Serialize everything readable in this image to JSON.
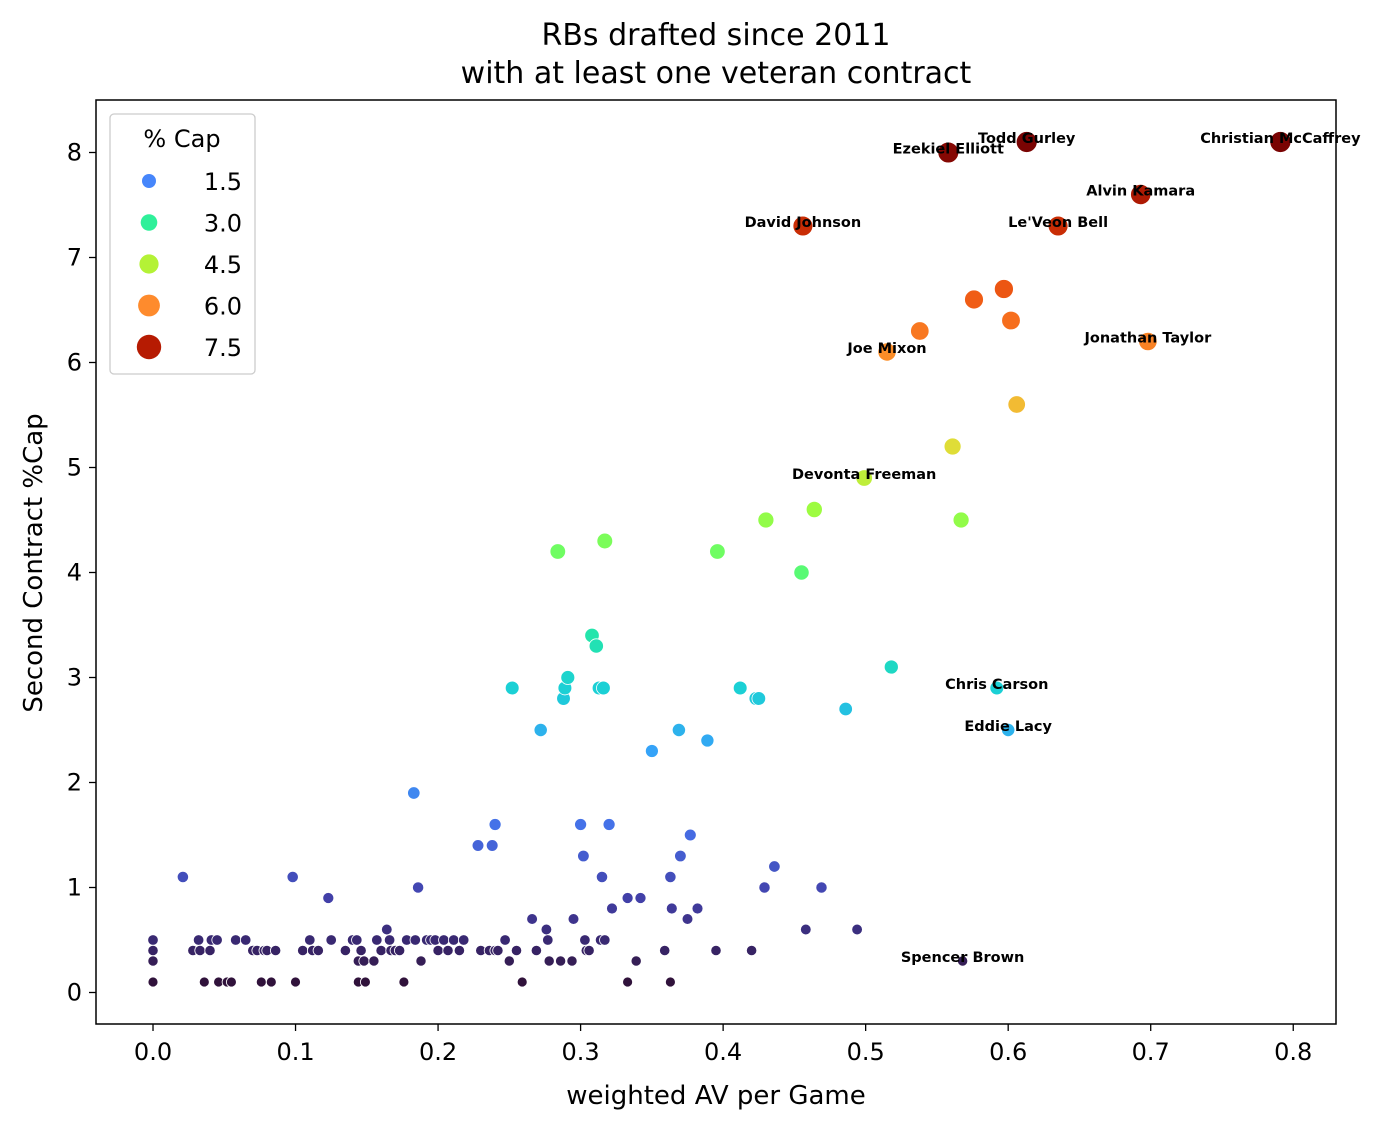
{
  "chart_data": {
    "type": "scatter",
    "title": [
      "RBs drafted since 2011",
      "with at least one veteran contract"
    ],
    "xlabel": "weighted AV per Game",
    "ylabel": "Second Contract %Cap",
    "xlim": [
      -0.04,
      0.83
    ],
    "ylim": [
      -0.3,
      8.5
    ],
    "xticks": [
      0.0,
      0.1,
      0.2,
      0.3,
      0.4,
      0.5,
      0.6,
      0.7,
      0.8
    ],
    "xtick_labels": [
      "0.0",
      "0.1",
      "0.2",
      "0.3",
      "0.4",
      "0.5",
      "0.6",
      "0.7",
      "0.8"
    ],
    "yticks": [
      0,
      1,
      2,
      3,
      4,
      5,
      6,
      7,
      8
    ],
    "ytick_labels": [
      "0",
      "1",
      "2",
      "3",
      "4",
      "5",
      "6",
      "7",
      "8"
    ],
    "grid": false,
    "hue": "% Cap",
    "size": "% Cap",
    "colormap": "turbo",
    "legend": {
      "title": "% Cap",
      "position": "top-left",
      "entries": [
        {
          "label": "1.5",
          "value": 1.5,
          "color": "#4686fb"
        },
        {
          "label": "3.0",
          "value": 3.0,
          "color": "#2ff09a"
        },
        {
          "label": "4.5",
          "value": 4.5,
          "color": "#b4f236"
        },
        {
          "label": "6.0",
          "value": 6.0,
          "color": "#fe8b2d"
        },
        {
          "label": "7.5",
          "value": 7.5,
          "color": "#b61b02"
        }
      ]
    },
    "points": [
      [
        0.0,
        0.5
      ],
      [
        0.0,
        0.4
      ],
      [
        0.0,
        0.3
      ],
      [
        0.0,
        0.1
      ],
      [
        0.021,
        1.1
      ],
      [
        0.028,
        0.4
      ],
      [
        0.032,
        0.5
      ],
      [
        0.033,
        0.4
      ],
      [
        0.036,
        0.1
      ],
      [
        0.04,
        0.4
      ],
      [
        0.041,
        0.5
      ],
      [
        0.045,
        0.5
      ],
      [
        0.046,
        0.1
      ],
      [
        0.052,
        0.1
      ],
      [
        0.055,
        0.1
      ],
      [
        0.058,
        0.5
      ],
      [
        0.065,
        0.5
      ],
      [
        0.07,
        0.4
      ],
      [
        0.073,
        0.4
      ],
      [
        0.076,
        0.1
      ],
      [
        0.078,
        0.4
      ],
      [
        0.08,
        0.4
      ],
      [
        0.083,
        0.1
      ],
      [
        0.086,
        0.4
      ],
      [
        0.098,
        1.1
      ],
      [
        0.1,
        0.1
      ],
      [
        0.105,
        0.4
      ],
      [
        0.11,
        0.5
      ],
      [
        0.112,
        0.4
      ],
      [
        0.116,
        0.4
      ],
      [
        0.123,
        0.9
      ],
      [
        0.125,
        0.5
      ],
      [
        0.135,
        0.4
      ],
      [
        0.14,
        0.5
      ],
      [
        0.143,
        0.5
      ],
      [
        0.144,
        0.3
      ],
      [
        0.144,
        0.1
      ],
      [
        0.146,
        0.4
      ],
      [
        0.148,
        0.3
      ],
      [
        0.149,
        0.1
      ],
      [
        0.155,
        0.3
      ],
      [
        0.157,
        0.5
      ],
      [
        0.16,
        0.4
      ],
      [
        0.164,
        0.6
      ],
      [
        0.166,
        0.5
      ],
      [
        0.167,
        0.4
      ],
      [
        0.17,
        0.4
      ],
      [
        0.173,
        0.4
      ],
      [
        0.176,
        0.1
      ],
      [
        0.178,
        0.5
      ],
      [
        0.183,
        1.9
      ],
      [
        0.184,
        0.5
      ],
      [
        0.186,
        1.0
      ],
      [
        0.188,
        0.3
      ],
      [
        0.192,
        0.5
      ],
      [
        0.195,
        0.5
      ],
      [
        0.198,
        0.5
      ],
      [
        0.2,
        0.4
      ],
      [
        0.204,
        0.5
      ],
      [
        0.207,
        0.4
      ],
      [
        0.211,
        0.5
      ],
      [
        0.215,
        0.4
      ],
      [
        0.218,
        0.5
      ],
      [
        0.228,
        1.4
      ],
      [
        0.23,
        0.4
      ],
      [
        0.236,
        0.4
      ],
      [
        0.238,
        1.4
      ],
      [
        0.24,
        1.6
      ],
      [
        0.24,
        0.4
      ],
      [
        0.242,
        0.4
      ],
      [
        0.247,
        0.5
      ],
      [
        0.25,
        0.3
      ],
      [
        0.255,
        0.4
      ],
      [
        0.259,
        0.1
      ],
      [
        0.252,
        2.9
      ],
      [
        0.266,
        0.7
      ],
      [
        0.269,
        0.4
      ],
      [
        0.272,
        2.5
      ],
      [
        0.276,
        0.6
      ],
      [
        0.277,
        0.5
      ],
      [
        0.278,
        0.3
      ],
      [
        0.284,
        4.2
      ],
      [
        0.286,
        0.3
      ],
      [
        0.288,
        2.8
      ],
      [
        0.289,
        2.9
      ],
      [
        0.291,
        3.0
      ],
      [
        0.294,
        0.3
      ],
      [
        0.295,
        0.7
      ],
      [
        0.3,
        1.6
      ],
      [
        0.302,
        1.3
      ],
      [
        0.303,
        0.5
      ],
      [
        0.304,
        0.4
      ],
      [
        0.306,
        0.4
      ],
      [
        0.308,
        3.4
      ],
      [
        0.311,
        3.3
      ],
      [
        0.313,
        2.9
      ],
      [
        0.314,
        0.5
      ],
      [
        0.316,
        2.9
      ],
      [
        0.317,
        0.5
      ],
      [
        0.315,
        1.1
      ],
      [
        0.317,
        4.3
      ],
      [
        0.32,
        1.6
      ],
      [
        0.322,
        0.8
      ],
      [
        0.333,
        0.9
      ],
      [
        0.333,
        0.1
      ],
      [
        0.339,
        0.3
      ],
      [
        0.342,
        0.9
      ],
      [
        0.35,
        2.3
      ],
      [
        0.359,
        0.4
      ],
      [
        0.363,
        1.1
      ],
      [
        0.364,
        0.8
      ],
      [
        0.363,
        0.1
      ],
      [
        0.369,
        2.5
      ],
      [
        0.37,
        1.3
      ],
      [
        0.375,
        0.7
      ],
      [
        0.377,
        1.5
      ],
      [
        0.382,
        0.8
      ],
      [
        0.389,
        2.4
      ],
      [
        0.395,
        0.4
      ],
      [
        0.396,
        4.2
      ],
      [
        0.412,
        2.9
      ],
      [
        0.42,
        0.4
      ],
      [
        0.423,
        2.8
      ],
      [
        0.425,
        2.8
      ],
      [
        0.429,
        1.0
      ],
      [
        0.43,
        4.5
      ],
      [
        0.436,
        1.2
      ],
      [
        0.455,
        4.0
      ],
      [
        0.456,
        7.3
      ],
      [
        0.458,
        0.6
      ],
      [
        0.464,
        4.6
      ],
      [
        0.469,
        1.0
      ],
      [
        0.486,
        2.7
      ],
      [
        0.494,
        0.6
      ],
      [
        0.499,
        4.9
      ],
      [
        0.515,
        6.1
      ],
      [
        0.518,
        3.1
      ],
      [
        0.538,
        6.3
      ],
      [
        0.558,
        8.0
      ],
      [
        0.561,
        5.2
      ],
      [
        0.567,
        4.5
      ],
      [
        0.568,
        0.3
      ],
      [
        0.576,
        6.6
      ],
      [
        0.592,
        2.9
      ],
      [
        0.597,
        6.7
      ],
      [
        0.6,
        2.5
      ],
      [
        0.602,
        6.4
      ],
      [
        0.606,
        5.6
      ],
      [
        0.613,
        8.1
      ],
      [
        0.635,
        7.3
      ],
      [
        0.693,
        7.6
      ],
      [
        0.698,
        6.2
      ],
      [
        0.791,
        8.1
      ]
    ],
    "annotations": [
      {
        "text": "Christian McCaffrey",
        "x": 0.791,
        "y": 8.1
      },
      {
        "text": "Todd Gurley",
        "x": 0.613,
        "y": 8.1
      },
      {
        "text": "Ezekiel Elliott",
        "x": 0.558,
        "y": 8.0
      },
      {
        "text": "Alvin Kamara",
        "x": 0.693,
        "y": 7.6
      },
      {
        "text": "David Johnson",
        "x": 0.456,
        "y": 7.3
      },
      {
        "text": "Le'Veon Bell",
        "x": 0.635,
        "y": 7.3
      },
      {
        "text": "Jonathan Taylor",
        "x": 0.698,
        "y": 6.2
      },
      {
        "text": "Joe Mixon",
        "x": 0.515,
        "y": 6.1
      },
      {
        "text": "Devonta Freeman",
        "x": 0.499,
        "y": 4.9
      },
      {
        "text": "Chris Carson",
        "x": 0.592,
        "y": 2.9
      },
      {
        "text": "Eddie Lacy",
        "x": 0.6,
        "y": 2.5
      },
      {
        "text": "Spencer Brown",
        "x": 0.568,
        "y": 0.3
      }
    ]
  }
}
